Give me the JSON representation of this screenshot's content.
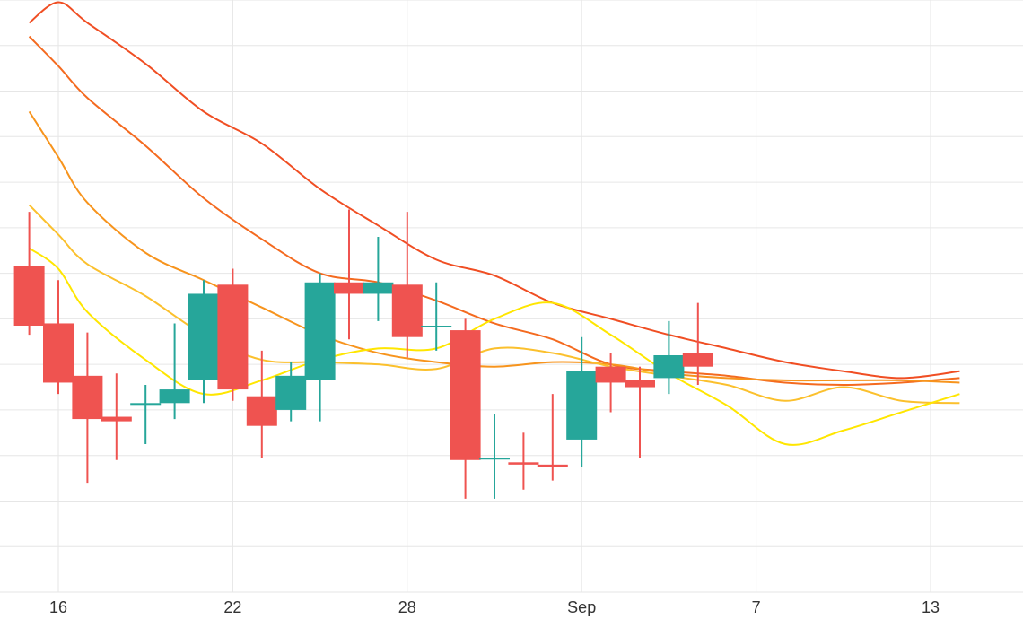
{
  "chart_data": {
    "type": "candlestick",
    "title": "",
    "xlabel": "",
    "ylabel": "",
    "grid": true,
    "legend": "none",
    "y_unit": "arbitrary",
    "ylim": [
      0,
      13
    ],
    "x_tick_labels": [
      {
        "day": 16,
        "label": "16"
      },
      {
        "day": 22,
        "label": "22"
      },
      {
        "day": 28,
        "label": "28"
      },
      {
        "day": 34,
        "label": "Sep"
      },
      {
        "day": 40,
        "label": "7"
      },
      {
        "day": 46,
        "label": "13"
      }
    ],
    "colors": {
      "up": "#26a69a",
      "down": "#ef5350",
      "grid": "#e6e6e6",
      "tick_text": "#333333"
    },
    "candles": [
      {
        "day": 15.0,
        "open": 7.15,
        "high": 8.35,
        "low": 5.65,
        "close": 5.85
      },
      {
        "day": 16.0,
        "open": 5.9,
        "high": 6.85,
        "low": 4.35,
        "close": 4.6
      },
      {
        "day": 17.0,
        "open": 4.75,
        "high": 5.7,
        "low": 2.4,
        "close": 3.8
      },
      {
        "day": 18.0,
        "open": 3.85,
        "high": 4.8,
        "low": 2.9,
        "close": 3.75
      },
      {
        "day": 19.0,
        "open": 4.15,
        "high": 4.55,
        "low": 3.25,
        "close": 4.15
      },
      {
        "day": 20.0,
        "open": 4.15,
        "high": 5.9,
        "low": 3.8,
        "close": 4.45
      },
      {
        "day": 21.0,
        "open": 4.65,
        "high": 6.85,
        "low": 4.15,
        "close": 6.55
      },
      {
        "day": 22.0,
        "open": 6.75,
        "high": 7.1,
        "low": 4.2,
        "close": 4.45
      },
      {
        "day": 23.0,
        "open": 4.3,
        "high": 5.3,
        "low": 2.95,
        "close": 3.65
      },
      {
        "day": 24.0,
        "open": 4.0,
        "high": 5.05,
        "low": 3.75,
        "close": 4.75
      },
      {
        "day": 25.0,
        "open": 4.65,
        "high": 7.0,
        "low": 3.75,
        "close": 6.8
      },
      {
        "day": 26.0,
        "open": 6.8,
        "high": 8.4,
        "low": 5.55,
        "close": 6.55
      },
      {
        "day": 27.0,
        "open": 6.55,
        "high": 7.8,
        "low": 5.95,
        "close": 6.8
      },
      {
        "day": 28.0,
        "open": 6.75,
        "high": 8.35,
        "low": 5.15,
        "close": 5.6
      },
      {
        "day": 29.0,
        "open": 5.85,
        "high": 6.8,
        "low": 5.3,
        "close": 5.85
      },
      {
        "day": 30.0,
        "open": 5.75,
        "high": 6.0,
        "low": 2.05,
        "close": 2.9
      },
      {
        "day": 31.0,
        "open": 2.95,
        "high": 3.9,
        "low": 2.05,
        "close": 2.95
      },
      {
        "day": 32.0,
        "open": 2.85,
        "high": 3.5,
        "low": 2.25,
        "close": 2.8
      },
      {
        "day": 33.0,
        "open": 2.8,
        "high": 4.35,
        "low": 2.45,
        "close": 2.75
      },
      {
        "day": 34.0,
        "open": 3.35,
        "high": 5.6,
        "low": 2.75,
        "close": 4.85
      },
      {
        "day": 35.0,
        "open": 4.95,
        "high": 5.25,
        "low": 3.95,
        "close": 4.6
      },
      {
        "day": 36.0,
        "open": 4.65,
        "high": 4.95,
        "low": 2.95,
        "close": 4.5
      },
      {
        "day": 37.0,
        "open": 4.7,
        "high": 5.95,
        "low": 4.35,
        "close": 5.2
      },
      {
        "day": 38.0,
        "open": 5.25,
        "high": 6.35,
        "low": 4.55,
        "close": 4.95
      }
    ],
    "series": [
      {
        "color": "#f04e23",
        "points": [
          [
            15.0,
            12.5
          ],
          [
            16.0,
            12.95
          ],
          [
            17.0,
            12.5
          ],
          [
            19.0,
            11.6
          ],
          [
            21.0,
            10.55
          ],
          [
            23.0,
            9.85
          ],
          [
            25.0,
            8.85
          ],
          [
            27.0,
            8.05
          ],
          [
            29.0,
            7.3
          ],
          [
            31.0,
            6.95
          ],
          [
            33.0,
            6.35
          ],
          [
            35.0,
            6.0
          ],
          [
            37.0,
            5.65
          ],
          [
            39.0,
            5.35
          ],
          [
            41.0,
            5.05
          ],
          [
            43.0,
            4.85
          ],
          [
            45.0,
            4.7
          ],
          [
            47.0,
            4.85
          ]
        ]
      },
      {
        "color": "#f46a1f",
        "points": [
          [
            15.0,
            12.2
          ],
          [
            16.0,
            11.55
          ],
          [
            17.0,
            10.85
          ],
          [
            19.0,
            9.8
          ],
          [
            21.0,
            8.65
          ],
          [
            23.0,
            7.75
          ],
          [
            25.0,
            7.0
          ],
          [
            27.0,
            6.8
          ],
          [
            29.0,
            6.4
          ],
          [
            31.0,
            5.9
          ],
          [
            33.0,
            5.55
          ],
          [
            35.0,
            5.0
          ],
          [
            37.0,
            4.85
          ],
          [
            39.0,
            4.75
          ],
          [
            41.0,
            4.6
          ],
          [
            43.0,
            4.55
          ],
          [
            45.0,
            4.6
          ],
          [
            47.0,
            4.7
          ]
        ]
      },
      {
        "color": "#f7941d",
        "points": [
          [
            15.0,
            10.55
          ],
          [
            16.0,
            9.55
          ],
          [
            17.0,
            8.55
          ],
          [
            19.0,
            7.45
          ],
          [
            21.0,
            6.85
          ],
          [
            23.0,
            6.25
          ],
          [
            25.0,
            5.65
          ],
          [
            27.0,
            5.25
          ],
          [
            29.0,
            5.05
          ],
          [
            31.0,
            4.95
          ],
          [
            33.0,
            5.05
          ],
          [
            35.0,
            5.0
          ],
          [
            37.0,
            4.8
          ],
          [
            39.0,
            4.7
          ],
          [
            41.0,
            4.65
          ],
          [
            43.0,
            4.65
          ],
          [
            45.0,
            4.65
          ],
          [
            47.0,
            4.6
          ]
        ]
      },
      {
        "color": "#fbc02d",
        "points": [
          [
            15.0,
            8.5
          ],
          [
            16.0,
            7.85
          ],
          [
            17.0,
            7.2
          ],
          [
            19.0,
            6.5
          ],
          [
            21.0,
            5.65
          ],
          [
            23.0,
            5.1
          ],
          [
            25.0,
            5.05
          ],
          [
            27.0,
            5.0
          ],
          [
            29.0,
            4.9
          ],
          [
            31.0,
            5.35
          ],
          [
            33.0,
            5.25
          ],
          [
            35.0,
            4.95
          ],
          [
            37.0,
            4.75
          ],
          [
            39.0,
            4.55
          ],
          [
            41.0,
            4.2
          ],
          [
            43.0,
            4.5
          ],
          [
            45.0,
            4.2
          ],
          [
            47.0,
            4.15
          ]
        ]
      },
      {
        "color": "#ffe600",
        "points": [
          [
            15.0,
            7.55
          ],
          [
            16.0,
            7.1
          ],
          [
            17.0,
            6.15
          ],
          [
            19.0,
            5.1
          ],
          [
            21.0,
            4.35
          ],
          [
            23.0,
            4.65
          ],
          [
            25.0,
            5.1
          ],
          [
            27.0,
            5.35
          ],
          [
            29.0,
            5.35
          ],
          [
            31.0,
            6.0
          ],
          [
            33.0,
            6.35
          ],
          [
            35.0,
            5.65
          ],
          [
            37.0,
            4.8
          ],
          [
            39.0,
            4.1
          ],
          [
            41.0,
            3.25
          ],
          [
            43.0,
            3.55
          ],
          [
            45.0,
            3.95
          ],
          [
            47.0,
            4.35
          ]
        ]
      }
    ]
  }
}
